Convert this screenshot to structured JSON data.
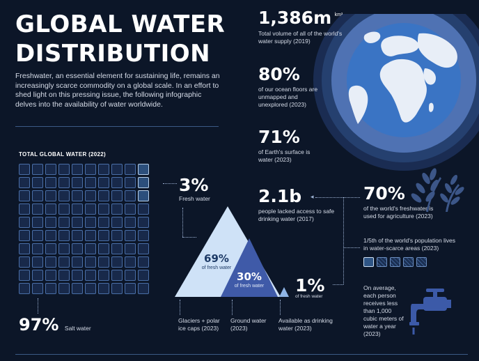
{
  "header": {
    "title_line1": "GLOBAL WATER",
    "title_line2": "DISTRIBUTION",
    "intro": "Freshwater, an essential element for sustaining life, remains an increasingly scarce commodity on a global scale. In an effort to shed light on this pressing issue, the following infographic delves into the availability of water worldwide."
  },
  "stats": {
    "volume_value": "1,386m",
    "volume_unit": "km³",
    "volume_caption": "Total volume of all of the world's water supply (2019)",
    "ocean_value": "80%",
    "ocean_caption": "of our ocean floors are unmapped and unexplored (2023)",
    "surface_value": "71%",
    "surface_caption": "of Earth's surface is water (2023)"
  },
  "total_water": {
    "label": "TOTAL GLOBAL WATER (2022)",
    "salt_value": "97%",
    "salt_label": "Salt water",
    "fresh_value": "3%",
    "fresh_label": "Fresh water",
    "grid_total": 100,
    "grid_fresh": 3
  },
  "freshwater_split": {
    "glaciers_value": "69%",
    "glaciers_sub": "of fresh water",
    "ground_value": "30%",
    "ground_sub": "of fresh water",
    "drinking_value": "1%",
    "drinking_sub": "of fresh water",
    "glaciers_label": "Glaciers + polar ice caps (2023)",
    "ground_label": "Ground water (2023)",
    "drinking_label": "Available as drinking water (2023)"
  },
  "access": {
    "people_value": "2.1b",
    "people_caption": "people lacked access to safe drinking water (2017)",
    "agri_value": "70%",
    "agri_caption": "of the world's freshwater is used for agriculture (2023)",
    "population_caption": "1/5th of the world's population lives in water-scarce areas (2023)",
    "population_fraction": 0.2,
    "tap_caption": "On average, each person receives less than 1,000 cubic meters of water a year (2023)"
  },
  "colors": {
    "background": "#0c1628",
    "globe_ocean": "#3a74c4",
    "globe_land": "#e8eef7",
    "light_triangle": "#cfe2f7",
    "dark_triangle": "#3f5aa8",
    "ring_outer": "#22386a",
    "ring_inner": "#5b7dbc"
  }
}
